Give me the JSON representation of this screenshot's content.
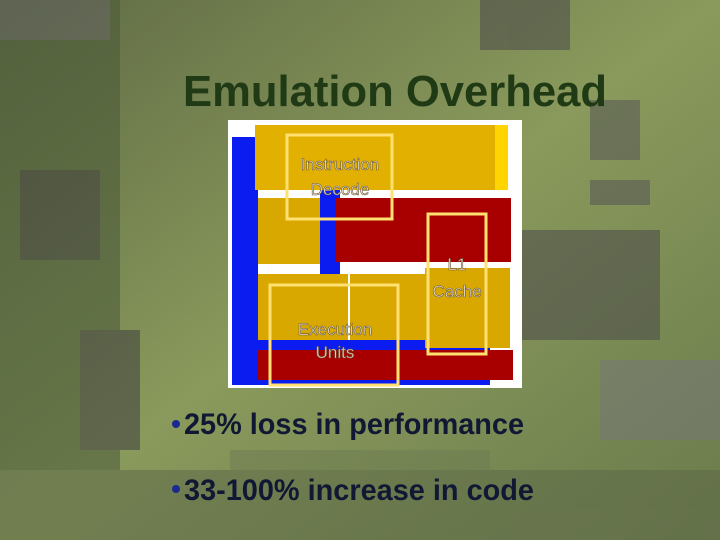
{
  "title": "Emulation Overhead",
  "diagram": {
    "labels": [
      [
        "Instruction",
        "Decode"
      ],
      [
        "L1",
        "Cache"
      ],
      [
        "Execution",
        "Units"
      ]
    ]
  },
  "bullets": [
    "25% loss in performance",
    "33-100% increase in code"
  ]
}
